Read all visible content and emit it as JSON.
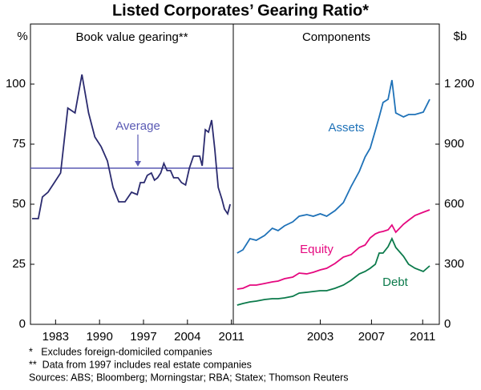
{
  "title": "Listed Corporates’ Gearing Ratio*",
  "chart_data": [
    {
      "type": "line",
      "title": "Book value gearing**",
      "y_unit": "%",
      "y_axis_side": "left",
      "color": "#2b2b6f",
      "x": [
        1979.25,
        1980.25,
        1980.9,
        1981.8,
        1982.8,
        1983.8,
        1984.95,
        1986.1,
        1987.2,
        1988.25,
        1989.25,
        1990.25,
        1991.25,
        1992.15,
        1993.05,
        1994.05,
        1995.1,
        1996,
        1996.5,
        1997.1,
        1997.6,
        1998.25,
        1998.75,
        1999.25,
        1999.75,
        2000.25,
        2000.75,
        2001.3,
        2001.8,
        2002.5,
        2003.05,
        2003.7,
        2004.3,
        2004.95,
        2005.45,
        2005.95,
        2006.35,
        2006.85,
        2007.35,
        2007.85,
        2008.35,
        2008.9,
        2009.5,
        2009.9,
        2010.4,
        2010.8
      ],
      "values": [
        44,
        44,
        53,
        55,
        59,
        63,
        90,
        88,
        104,
        88,
        78,
        74,
        68,
        57,
        51,
        51,
        55,
        54,
        59,
        59,
        62,
        63,
        60,
        61,
        63,
        67,
        64,
        64,
        61,
        61,
        59,
        58,
        65,
        70,
        70,
        70,
        66,
        81,
        80,
        85,
        73,
        57,
        52,
        48,
        46,
        50
      ],
      "average": {
        "value": 65,
        "label": "Average",
        "color": "#5a5ab4"
      },
      "xlim": [
        1979,
        2011.3
      ],
      "xticks": [
        1983,
        1990,
        1997,
        2004,
        2011
      ],
      "ylim": [
        0,
        125
      ],
      "yticks": [
        0,
        25,
        50,
        75,
        100
      ]
    },
    {
      "type": "line",
      "title": "Components",
      "y_unit": "$b",
      "y_axis_side": "right",
      "x": [
        1996.5,
        1996.95,
        1997.5,
        1998,
        1998.65,
        1999.25,
        1999.7,
        2000.2,
        2000.85,
        2001.35,
        2001.95,
        2002.45,
        2003,
        2003.5,
        2004.15,
        2004.8,
        2005.4,
        2006.05,
        2006.5,
        2006.9,
        2007.3,
        2007.6,
        2007.9,
        2008.3,
        2008.6,
        2008.9,
        2009.5,
        2009.9,
        2010.4,
        2011.05,
        2011.55
      ],
      "series": [
        {
          "name": "Assets",
          "color": "#1f72b8",
          "values": [
            356,
            372,
            428,
            420,
            444,
            480,
            468,
            492,
            512,
            540,
            548,
            540,
            552,
            540,
            568,
            608,
            688,
            764,
            836,
            880,
            968,
            1036,
            1108,
            1124,
            1220,
            1056,
            1036,
            1048,
            1048,
            1060,
            1124
          ]
        },
        {
          "name": "Equity",
          "color": "#e5087f",
          "values": [
            176,
            180,
            196,
            196,
            204,
            212,
            216,
            228,
            236,
            256,
            252,
            260,
            272,
            280,
            304,
            336,
            348,
            384,
            396,
            432,
            452,
            460,
            464,
            472,
            496,
            460,
            500,
            520,
            544,
            560,
            572
          ]
        },
        {
          "name": "Debt",
          "color": "#0b7a4b",
          "values": [
            96,
            104,
            112,
            116,
            124,
            128,
            128,
            132,
            140,
            156,
            160,
            164,
            168,
            168,
            180,
            196,
            220,
            252,
            264,
            280,
            300,
            356,
            356,
            388,
            428,
            384,
            340,
            300,
            280,
            264,
            292
          ]
        }
      ],
      "xlim": [
        1996.2,
        2012.3
      ],
      "xticks": [
        2003,
        2007,
        2011
      ],
      "ylim": [
        0,
        1500
      ],
      "yticks": [
        0,
        300,
        600,
        900,
        {
          "value": 1200,
          "label": "1 200"
        }
      ]
    }
  ],
  "footnotes": [
    "*   Excludes foreign-domiciled companies",
    "**  Data from 1997 includes real estate companies",
    "Sources: ABS; Bloomberg; Morningstar; RBA; Statex; Thomson Reuters"
  ]
}
